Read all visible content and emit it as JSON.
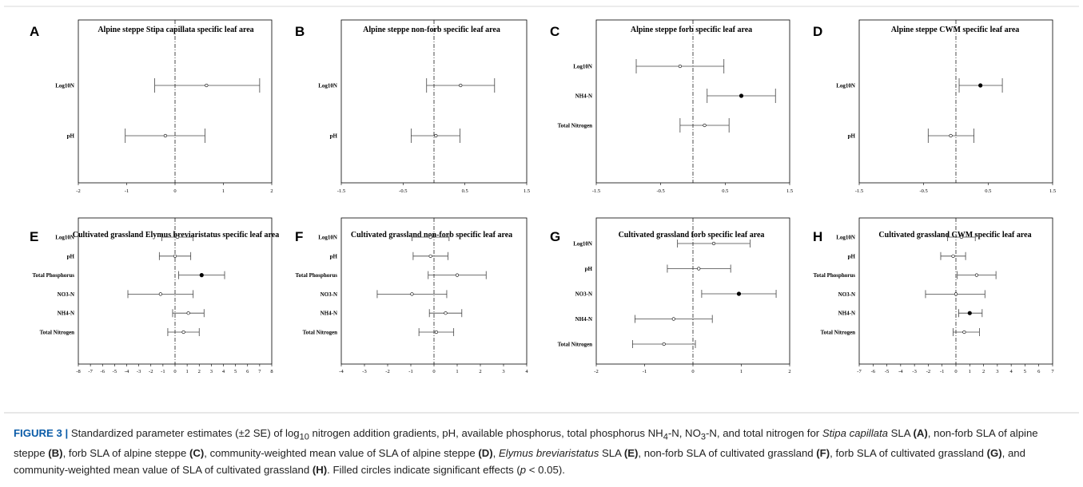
{
  "chart_data": [
    {
      "letter": "A",
      "type": "scatter",
      "title": "Alpine steppe Stipa capillata specific leaf area",
      "xlim": [
        -2,
        2
      ],
      "xticks": [
        "-2",
        "-1",
        "0",
        "1",
        "2"
      ],
      "rows": [
        {
          "label": "Log10N",
          "est": 0.65,
          "lo": -0.42,
          "hi": 1.75,
          "sig": false
        },
        {
          "label": "pH",
          "est": -0.2,
          "lo": -1.03,
          "hi": 0.62,
          "sig": false
        }
      ]
    },
    {
      "letter": "B",
      "type": "scatter",
      "title": "Alpine steppe non-forb specific leaf area",
      "xlim": [
        -1.5,
        1.5
      ],
      "xticks": [
        "-1.5",
        "-0.5",
        "0.5",
        "1.5"
      ],
      "rows": [
        {
          "label": "Log10N",
          "est": 0.43,
          "lo": -0.12,
          "hi": 0.98,
          "sig": false
        },
        {
          "label": "pH",
          "est": 0.03,
          "lo": -0.37,
          "hi": 0.42,
          "sig": false
        }
      ]
    },
    {
      "letter": "C",
      "type": "scatter",
      "title": "Alpine steppe forb specific leaf area",
      "xlim": [
        -1.5,
        1.5
      ],
      "xticks": [
        "-1.5",
        "-0.5",
        "0.5",
        "1.5"
      ],
      "rows": [
        {
          "label": "Log10N",
          "est": -0.2,
          "lo": -0.88,
          "hi": 0.48,
          "sig": false
        },
        {
          "label": "NH4-N",
          "est": 0.75,
          "lo": 0.22,
          "hi": 1.28,
          "sig": true
        },
        {
          "label": "Total Nitrogen",
          "est": 0.18,
          "lo": -0.2,
          "hi": 0.56,
          "sig": false
        }
      ]
    },
    {
      "letter": "D",
      "type": "scatter",
      "title": "Alpine steppe CWM specific leaf area",
      "xlim": [
        -1.5,
        1.5
      ],
      "xticks": [
        "-1.5",
        "-0.5",
        "0.5",
        "1.5"
      ],
      "rows": [
        {
          "label": "Log10N",
          "est": 0.38,
          "lo": 0.05,
          "hi": 0.72,
          "sig": true
        },
        {
          "label": "pH",
          "est": -0.08,
          "lo": -0.43,
          "hi": 0.28,
          "sig": false
        }
      ]
    },
    {
      "letter": "E",
      "type": "scatter",
      "title": "Cultivated grassland Elymus breviaristatus specific leaf area",
      "xlim": [
        -8,
        8
      ],
      "xticks": [
        "-8",
        "-7",
        "-6",
        "-5",
        "-4",
        "-3",
        "-2",
        "-1",
        "0",
        "1",
        "2",
        "3",
        "4",
        "5",
        "6",
        "7",
        "8"
      ],
      "rows": [
        {
          "label": "Log10N",
          "est": 0.2,
          "lo": -1.1,
          "hi": 1.5,
          "sig": false
        },
        {
          "label": "pH",
          "est": 0.0,
          "lo": -1.3,
          "hi": 1.3,
          "sig": false
        },
        {
          "label": "Total Phosphorus",
          "est": 2.2,
          "lo": 0.3,
          "hi": 4.1,
          "sig": true
        },
        {
          "label": "NO3-N",
          "est": -1.2,
          "lo": -3.9,
          "hi": 1.5,
          "sig": false
        },
        {
          "label": "NH4-N",
          "est": 1.1,
          "lo": -0.2,
          "hi": 2.4,
          "sig": false
        },
        {
          "label": "Total Nitrogen",
          "est": 0.7,
          "lo": -0.6,
          "hi": 2.0,
          "sig": false
        }
      ]
    },
    {
      "letter": "F",
      "type": "scatter",
      "title": "Cultivated grassland non-forb specific leaf area",
      "xlim": [
        -4,
        4
      ],
      "xticks": [
        "-4",
        "-3",
        "-2",
        "-1",
        "0",
        "1",
        "2",
        "3",
        "4"
      ],
      "rows": [
        {
          "label": "Log10N",
          "est": -0.15,
          "lo": -0.95,
          "hi": 0.65,
          "sig": false
        },
        {
          "label": "pH",
          "est": -0.15,
          "lo": -0.9,
          "hi": 0.6,
          "sig": false
        },
        {
          "label": "Total Phosphorus",
          "est": 1.0,
          "lo": -0.25,
          "hi": 2.25,
          "sig": false
        },
        {
          "label": "NO3-N",
          "est": -0.95,
          "lo": -2.45,
          "hi": 0.55,
          "sig": false
        },
        {
          "label": "NH4-N",
          "est": 0.5,
          "lo": -0.2,
          "hi": 1.2,
          "sig": false
        },
        {
          "label": "Total Nitrogen",
          "est": 0.1,
          "lo": -0.65,
          "hi": 0.85,
          "sig": false
        }
      ]
    },
    {
      "letter": "G",
      "type": "scatter",
      "title": "Cultivated grassland forb specific leaf area",
      "xlim": [
        -2,
        2
      ],
      "xticks": [
        "-2",
        "-1",
        "0",
        "1",
        "2"
      ],
      "rows": [
        {
          "label": "Log10N",
          "est": 0.43,
          "lo": -0.32,
          "hi": 1.18,
          "sig": false
        },
        {
          "label": "pH",
          "est": 0.12,
          "lo": -0.53,
          "hi": 0.78,
          "sig": false
        },
        {
          "label": "NO3-N",
          "est": 0.95,
          "lo": 0.18,
          "hi": 1.72,
          "sig": true
        },
        {
          "label": "NH4-N",
          "est": -0.4,
          "lo": -1.2,
          "hi": 0.4,
          "sig": false
        },
        {
          "label": "Total Nitrogen",
          "est": -0.6,
          "lo": -1.25,
          "hi": 0.05,
          "sig": false
        }
      ]
    },
    {
      "letter": "H",
      "type": "scatter",
      "title": "Cultivated grassland CWM specific leaf area",
      "xlim": [
        -7,
        7
      ],
      "xticks": [
        "-7",
        "-6",
        "-5",
        "-4",
        "-3",
        "-2",
        "-1",
        "0",
        "1",
        "2",
        "3",
        "4",
        "5",
        "6",
        "7"
      ],
      "rows": [
        {
          "label": "Log10N",
          "est": 0.4,
          "lo": -0.6,
          "hi": 1.4,
          "sig": false
        },
        {
          "label": "pH",
          "est": -0.2,
          "lo": -1.1,
          "hi": 0.7,
          "sig": false
        },
        {
          "label": "Total Phosphorus",
          "est": 1.5,
          "lo": 0.1,
          "hi": 2.9,
          "sig": false
        },
        {
          "label": "NO3-N",
          "est": 0.0,
          "lo": -2.2,
          "hi": 2.1,
          "sig": false
        },
        {
          "label": "NH4-N",
          "est": 1.0,
          "lo": 0.2,
          "hi": 1.9,
          "sig": true
        },
        {
          "label": "Total Nitrogen",
          "est": 0.6,
          "lo": -0.2,
          "hi": 1.7,
          "sig": false
        }
      ]
    }
  ],
  "caption": {
    "figure_label": "FIGURE 3 |",
    "segments": [
      {
        "t": " Standardized parameter estimates (±2 SE) of log",
        "s": ""
      },
      {
        "t": "10",
        "s": "sub"
      },
      {
        "t": " nitrogen addition gradients, pH, available phosphorus, total phosphorus NH",
        "s": ""
      },
      {
        "t": "4",
        "s": "sub"
      },
      {
        "t": "-N, NO",
        "s": ""
      },
      {
        "t": "3",
        "s": "sub"
      },
      {
        "t": "-N, and total nitrogen for ",
        "s": ""
      },
      {
        "t": "Stipa capillata",
        "s": "i"
      },
      {
        "t": " SLA ",
        "s": ""
      },
      {
        "t": "(A)",
        "s": "b"
      },
      {
        "t": ", non-forb SLA of alpine steppe ",
        "s": ""
      },
      {
        "t": "(B)",
        "s": "b"
      },
      {
        "t": ", forb SLA of alpine steppe ",
        "s": ""
      },
      {
        "t": "(C)",
        "s": "b"
      },
      {
        "t": ", community-weighted mean value of SLA of alpine steppe ",
        "s": ""
      },
      {
        "t": "(D)",
        "s": "b"
      },
      {
        "t": ", ",
        "s": ""
      },
      {
        "t": "Elymus breviaristatus",
        "s": "i"
      },
      {
        "t": " SLA ",
        "s": ""
      },
      {
        "t": "(E)",
        "s": "b"
      },
      {
        "t": ", non-forb SLA of cultivated grassland ",
        "s": ""
      },
      {
        "t": "(F)",
        "s": "b"
      },
      {
        "t": ", forb SLA of cultivated grassland ",
        "s": ""
      },
      {
        "t": "(G)",
        "s": "b"
      },
      {
        "t": ", and community-weighted mean value of SLA of cultivated grassland ",
        "s": ""
      },
      {
        "t": "(H)",
        "s": "b"
      },
      {
        "t": ". Filled circles indicate significant effects (",
        "s": ""
      },
      {
        "t": "p",
        "s": "i"
      },
      {
        "t": " < 0.05).",
        "s": ""
      }
    ]
  }
}
